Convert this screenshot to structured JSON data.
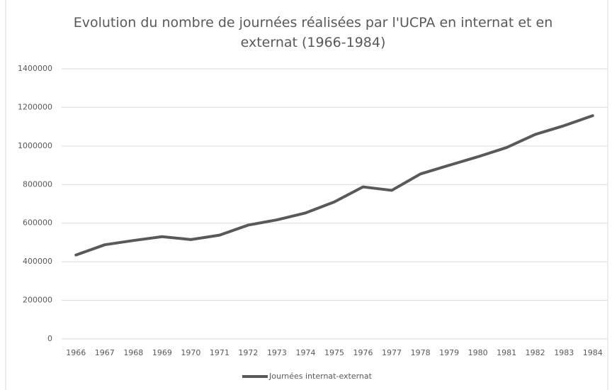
{
  "chart_data": {
    "type": "line",
    "title": "Evolution du nombre de journées réalisées par l'UCPA en internat et en externat (1966-1984)",
    "categories": [
      "1966",
      "1967",
      "1968",
      "1969",
      "1970",
      "1971",
      "1972",
      "1973",
      "1974",
      "1975",
      "1976",
      "1977",
      "1978",
      "1979",
      "1980",
      "1981",
      "1982",
      "1983",
      "1984"
    ],
    "series": [
      {
        "name": "Journées internat-externat",
        "color": "#595959",
        "values": [
          435000,
          488000,
          510000,
          530000,
          515000,
          538000,
          590000,
          617000,
          653000,
          710000,
          788000,
          770000,
          855000,
          900000,
          944000,
          992000,
          1060000,
          1105000,
          1157000
        ]
      }
    ],
    "ylim": [
      0,
      1400000
    ],
    "yticks": [
      0,
      200000,
      400000,
      600000,
      800000,
      1000000,
      1200000,
      1400000
    ],
    "grid": true,
    "legend": "bottom"
  }
}
